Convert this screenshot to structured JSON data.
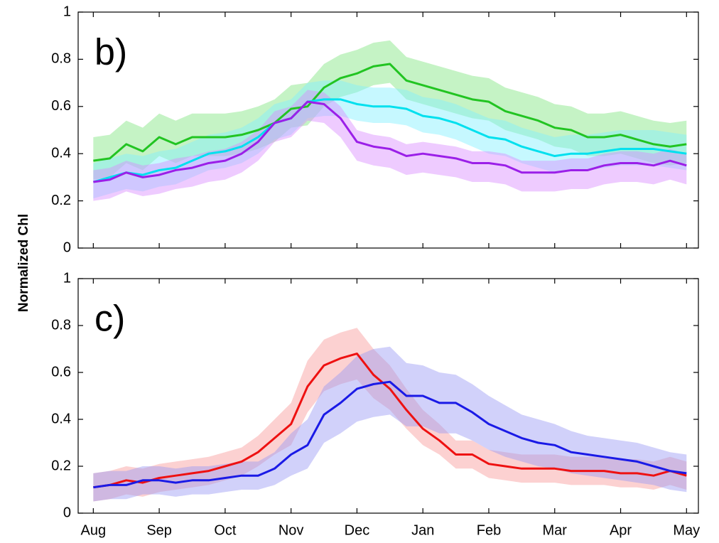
{
  "ylabel": "Normalized Chl",
  "chart_data": [
    {
      "type": "line",
      "panel_label": "b)",
      "x": [
        0,
        0.25,
        0.5,
        0.75,
        1,
        1.25,
        1.5,
        1.75,
        2,
        2.25,
        2.5,
        2.75,
        3,
        3.25,
        3.5,
        3.75,
        4,
        4.25,
        4.5,
        4.75,
        5,
        5.25,
        5.5,
        5.75,
        6,
        6.25,
        6.5,
        6.75,
        7,
        7.25,
        7.5,
        7.75,
        8,
        8.25,
        8.5,
        8.75,
        9
      ],
      "xlim": [
        -0.23,
        9.18
      ],
      "xticks": [
        0,
        1,
        2,
        3,
        4,
        5,
        6,
        7,
        8,
        9
      ],
      "show_xtick_labels": false,
      "ylim": [
        0,
        1
      ],
      "yticks": [
        0,
        0.2,
        0.4,
        0.6,
        0.8,
        1
      ],
      "series": [
        {
          "color": "#22c422",
          "band_color": "#7ee57e",
          "values": [
            0.37,
            0.38,
            0.44,
            0.41,
            0.47,
            0.44,
            0.47,
            0.47,
            0.47,
            0.48,
            0.5,
            0.53,
            0.59,
            0.6,
            0.68,
            0.72,
            0.74,
            0.77,
            0.78,
            0.71,
            0.69,
            0.67,
            0.65,
            0.63,
            0.62,
            0.58,
            0.56,
            0.54,
            0.51,
            0.5,
            0.47,
            0.47,
            0.48,
            0.46,
            0.44,
            0.43,
            0.44
          ],
          "lower": [
            0.29,
            0.3,
            0.36,
            0.33,
            0.39,
            0.36,
            0.39,
            0.39,
            0.39,
            0.4,
            0.42,
            0.45,
            0.51,
            0.52,
            0.6,
            0.64,
            0.66,
            0.69,
            0.7,
            0.63,
            0.61,
            0.59,
            0.57,
            0.55,
            0.54,
            0.5,
            0.48,
            0.46,
            0.43,
            0.42,
            0.39,
            0.39,
            0.4,
            0.38,
            0.36,
            0.35,
            0.36
          ],
          "upper": [
            0.47,
            0.48,
            0.54,
            0.51,
            0.57,
            0.54,
            0.57,
            0.57,
            0.57,
            0.58,
            0.6,
            0.63,
            0.69,
            0.7,
            0.78,
            0.82,
            0.84,
            0.87,
            0.88,
            0.81,
            0.79,
            0.77,
            0.75,
            0.73,
            0.72,
            0.68,
            0.66,
            0.64,
            0.61,
            0.6,
            0.57,
            0.57,
            0.58,
            0.56,
            0.54,
            0.53,
            0.54
          ]
        },
        {
          "color": "#00e0ee",
          "band_color": "#80f0ff",
          "values": [
            0.28,
            0.3,
            0.32,
            0.31,
            0.33,
            0.34,
            0.37,
            0.4,
            0.41,
            0.43,
            0.47,
            0.53,
            0.55,
            0.62,
            0.63,
            0.63,
            0.61,
            0.6,
            0.6,
            0.59,
            0.56,
            0.55,
            0.53,
            0.5,
            0.47,
            0.46,
            0.43,
            0.41,
            0.39,
            0.4,
            0.4,
            0.41,
            0.42,
            0.42,
            0.42,
            0.41,
            0.4
          ],
          "lower": [
            0.21,
            0.23,
            0.25,
            0.24,
            0.26,
            0.27,
            0.3,
            0.33,
            0.34,
            0.36,
            0.4,
            0.46,
            0.48,
            0.55,
            0.56,
            0.56,
            0.54,
            0.53,
            0.53,
            0.52,
            0.49,
            0.48,
            0.46,
            0.43,
            0.4,
            0.39,
            0.36,
            0.34,
            0.32,
            0.33,
            0.33,
            0.34,
            0.35,
            0.35,
            0.35,
            0.34,
            0.33
          ],
          "upper": [
            0.36,
            0.38,
            0.4,
            0.39,
            0.41,
            0.42,
            0.45,
            0.48,
            0.49,
            0.51,
            0.55,
            0.61,
            0.63,
            0.7,
            0.71,
            0.71,
            0.69,
            0.68,
            0.68,
            0.67,
            0.64,
            0.63,
            0.61,
            0.58,
            0.55,
            0.54,
            0.51,
            0.49,
            0.47,
            0.48,
            0.48,
            0.49,
            0.5,
            0.5,
            0.5,
            0.49,
            0.48
          ]
        },
        {
          "color": "#9b1fe8",
          "band_color": "#d98cff",
          "values": [
            0.28,
            0.29,
            0.32,
            0.3,
            0.31,
            0.33,
            0.34,
            0.36,
            0.37,
            0.4,
            0.45,
            0.53,
            0.55,
            0.62,
            0.61,
            0.55,
            0.45,
            0.43,
            0.42,
            0.39,
            0.4,
            0.39,
            0.38,
            0.36,
            0.36,
            0.35,
            0.32,
            0.32,
            0.32,
            0.33,
            0.33,
            0.35,
            0.36,
            0.36,
            0.35,
            0.37,
            0.35
          ],
          "lower": [
            0.2,
            0.21,
            0.24,
            0.22,
            0.23,
            0.25,
            0.26,
            0.28,
            0.29,
            0.32,
            0.37,
            0.45,
            0.47,
            0.54,
            0.53,
            0.47,
            0.37,
            0.35,
            0.34,
            0.31,
            0.32,
            0.31,
            0.3,
            0.28,
            0.28,
            0.27,
            0.24,
            0.24,
            0.24,
            0.25,
            0.25,
            0.27,
            0.28,
            0.28,
            0.27,
            0.29,
            0.27
          ],
          "upper": [
            0.33,
            0.34,
            0.37,
            0.35,
            0.36,
            0.38,
            0.39,
            0.41,
            0.42,
            0.45,
            0.5,
            0.58,
            0.6,
            0.67,
            0.66,
            0.6,
            0.5,
            0.48,
            0.47,
            0.44,
            0.45,
            0.44,
            0.43,
            0.41,
            0.41,
            0.4,
            0.37,
            0.37,
            0.37,
            0.38,
            0.38,
            0.4,
            0.41,
            0.41,
            0.4,
            0.42,
            0.4
          ]
        }
      ]
    },
    {
      "type": "line",
      "panel_label": "c)",
      "x": [
        0,
        0.25,
        0.5,
        0.75,
        1,
        1.25,
        1.5,
        1.75,
        2,
        2.25,
        2.5,
        2.75,
        3,
        3.25,
        3.5,
        3.75,
        4,
        4.25,
        4.5,
        4.75,
        5,
        5.25,
        5.5,
        5.75,
        6,
        6.25,
        6.5,
        6.75,
        7,
        7.25,
        7.5,
        7.75,
        8,
        8.25,
        8.5,
        8.75,
        9
      ],
      "xlim": [
        -0.23,
        9.18
      ],
      "xticks": [
        {
          "value": 0,
          "label": "Aug"
        },
        {
          "value": 1,
          "label": "Sep"
        },
        {
          "value": 2,
          "label": "Oct"
        },
        {
          "value": 3,
          "label": "Nov"
        },
        {
          "value": 4,
          "label": "Dec"
        },
        {
          "value": 5,
          "label": "Jan"
        },
        {
          "value": 6,
          "label": "Feb"
        },
        {
          "value": 7,
          "label": "Mar"
        },
        {
          "value": 8,
          "label": "Apr"
        },
        {
          "value": 9,
          "label": "May"
        }
      ],
      "show_xtick_labels": true,
      "ylim": [
        0,
        1
      ],
      "yticks": [
        0,
        0.2,
        0.4,
        0.6,
        0.8,
        1
      ],
      "series": [
        {
          "color": "#ee1111",
          "band_color": "#f99a9a",
          "values": [
            0.11,
            0.12,
            0.14,
            0.13,
            0.15,
            0.16,
            0.17,
            0.18,
            0.2,
            0.22,
            0.26,
            0.32,
            0.38,
            0.54,
            0.63,
            0.66,
            0.68,
            0.59,
            0.53,
            0.44,
            0.36,
            0.31,
            0.25,
            0.25,
            0.21,
            0.2,
            0.19,
            0.19,
            0.19,
            0.18,
            0.18,
            0.18,
            0.17,
            0.17,
            0.16,
            0.18,
            0.16
          ],
          "lower": [
            0.05,
            0.06,
            0.08,
            0.07,
            0.09,
            0.1,
            0.11,
            0.12,
            0.14,
            0.16,
            0.2,
            0.25,
            0.29,
            0.43,
            0.52,
            0.55,
            0.57,
            0.49,
            0.44,
            0.36,
            0.29,
            0.25,
            0.19,
            0.19,
            0.15,
            0.14,
            0.13,
            0.13,
            0.13,
            0.12,
            0.12,
            0.12,
            0.11,
            0.11,
            0.1,
            0.12,
            0.1
          ],
          "upper": [
            0.17,
            0.18,
            0.2,
            0.19,
            0.21,
            0.22,
            0.23,
            0.24,
            0.26,
            0.28,
            0.33,
            0.4,
            0.47,
            0.65,
            0.74,
            0.77,
            0.79,
            0.7,
            0.63,
            0.53,
            0.44,
            0.38,
            0.31,
            0.31,
            0.27,
            0.26,
            0.25,
            0.25,
            0.25,
            0.24,
            0.24,
            0.24,
            0.23,
            0.23,
            0.22,
            0.24,
            0.22
          ]
        },
        {
          "color": "#1a1ae6",
          "band_color": "#9a9af5",
          "values": [
            0.11,
            0.12,
            0.12,
            0.14,
            0.14,
            0.13,
            0.14,
            0.14,
            0.15,
            0.16,
            0.16,
            0.19,
            0.25,
            0.29,
            0.42,
            0.47,
            0.53,
            0.55,
            0.56,
            0.5,
            0.5,
            0.47,
            0.47,
            0.43,
            0.38,
            0.35,
            0.32,
            0.3,
            0.29,
            0.26,
            0.25,
            0.24,
            0.23,
            0.22,
            0.2,
            0.18,
            0.17
          ],
          "lower": [
            0.05,
            0.06,
            0.06,
            0.08,
            0.08,
            0.07,
            0.08,
            0.08,
            0.09,
            0.1,
            0.1,
            0.12,
            0.16,
            0.19,
            0.3,
            0.34,
            0.39,
            0.41,
            0.42,
            0.37,
            0.37,
            0.34,
            0.34,
            0.31,
            0.27,
            0.24,
            0.22,
            0.2,
            0.19,
            0.17,
            0.16,
            0.15,
            0.14,
            0.13,
            0.12,
            0.1,
            0.09
          ],
          "upper": [
            0.17,
            0.18,
            0.18,
            0.2,
            0.2,
            0.19,
            0.2,
            0.2,
            0.21,
            0.22,
            0.22,
            0.26,
            0.34,
            0.4,
            0.54,
            0.6,
            0.67,
            0.7,
            0.71,
            0.64,
            0.63,
            0.6,
            0.59,
            0.55,
            0.5,
            0.46,
            0.42,
            0.4,
            0.38,
            0.35,
            0.33,
            0.32,
            0.31,
            0.3,
            0.28,
            0.26,
            0.25
          ]
        }
      ]
    }
  ]
}
